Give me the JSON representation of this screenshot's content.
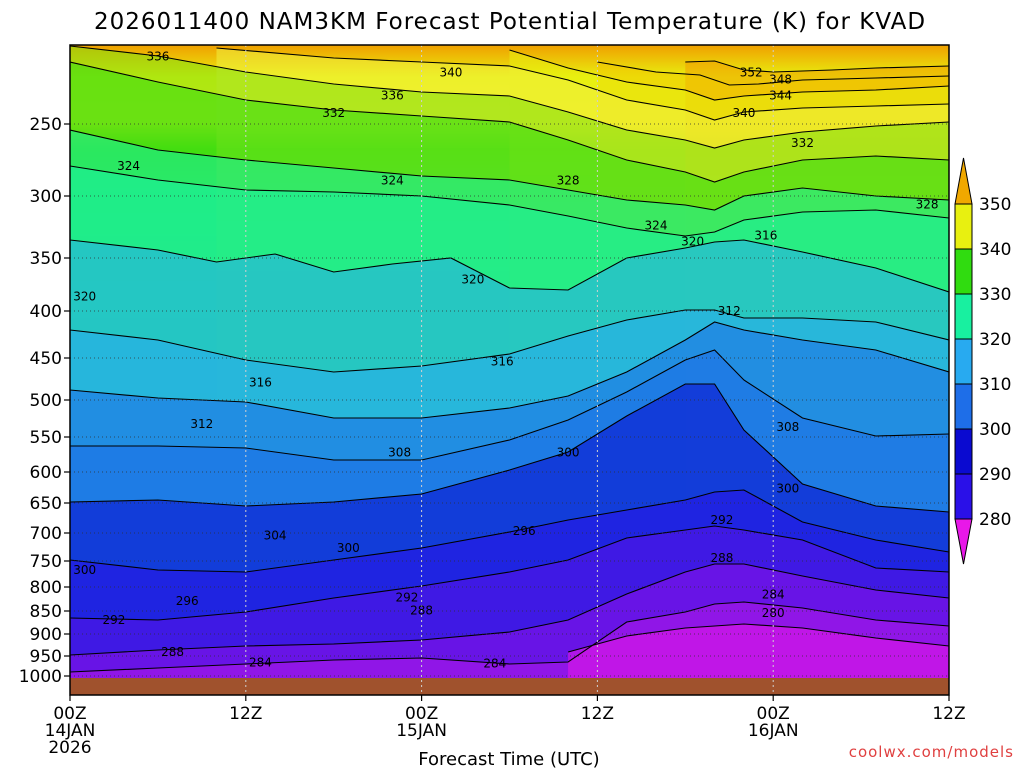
{
  "chart_data": {
    "type": "heatmap",
    "title": "2026011400 NAM3KM Forecast Potential Temperature (K) for KVAD",
    "xlabel": "Forecast Time (UTC)",
    "ylabel": "",
    "x_ticks": [
      {
        "hour": 0,
        "line1": "00Z",
        "line2": "14JAN",
        "line3": "2026"
      },
      {
        "hour": 12,
        "line1": "12Z",
        "line2": "",
        "line3": ""
      },
      {
        "hour": 24,
        "line1": "00Z",
        "line2": "15JAN",
        "line3": ""
      },
      {
        "hour": 36,
        "line1": "12Z",
        "line2": "",
        "line3": ""
      },
      {
        "hour": 48,
        "line1": "00Z",
        "line2": "16JAN",
        "line3": ""
      },
      {
        "hour": 60,
        "line1": "12Z",
        "line2": "",
        "line3": ""
      }
    ],
    "xlim": [
      0,
      60
    ],
    "y_ticks": [
      250,
      300,
      350,
      400,
      450,
      500,
      550,
      600,
      650,
      700,
      750,
      800,
      850,
      900,
      950,
      1000
    ],
    "ylim_hpa": [
      200,
      1015
    ],
    "colorbar": {
      "ticks": [
        280,
        290,
        300,
        310,
        320,
        330,
        340,
        350
      ],
      "colors": [
        "#e818e8",
        "#8a10e8",
        "#2a10e8",
        "#0a0ad0",
        "#1e6ee8",
        "#28aaf0",
        "#18f0a0",
        "#30dc10",
        "#e8f010",
        "#f0a800"
      ]
    },
    "isentropes": [
      {
        "label": "352",
        "points": [
          [
            42,
            62
          ],
          [
            44,
            61
          ],
          [
            46,
            70
          ],
          [
            48,
            72
          ],
          [
            52,
            70
          ],
          [
            55,
            68
          ],
          [
            60,
            66
          ]
        ]
      },
      {
        "label": "348",
        "points": [
          [
            36,
            62
          ],
          [
            40,
            72
          ],
          [
            43,
            75
          ],
          [
            45,
            85
          ],
          [
            47,
            84
          ],
          [
            50,
            80
          ],
          [
            55,
            78
          ],
          [
            60,
            76
          ]
        ]
      },
      {
        "label": "344",
        "points": [
          [
            30,
            50
          ],
          [
            34,
            68
          ],
          [
            38,
            82
          ],
          [
            42,
            90
          ],
          [
            44,
            100
          ],
          [
            46,
            96
          ],
          [
            50,
            92
          ],
          [
            55,
            90
          ],
          [
            60,
            86
          ]
        ]
      },
      {
        "label": "340",
        "points": [
          [
            10,
            48
          ],
          [
            18,
            58
          ],
          [
            24,
            62
          ],
          [
            30,
            66
          ],
          [
            34,
            80
          ],
          [
            38,
            100
          ],
          [
            42,
            110
          ],
          [
            44,
            120
          ],
          [
            46,
            112
          ],
          [
            50,
            108
          ],
          [
            55,
            106
          ],
          [
            60,
            104
          ]
        ]
      },
      {
        "label": "336",
        "points": [
          [
            0,
            46
          ],
          [
            6,
            56
          ],
          [
            12,
            72
          ],
          [
            18,
            84
          ],
          [
            24,
            92
          ],
          [
            30,
            96
          ],
          [
            34,
            112
          ],
          [
            38,
            130
          ],
          [
            42,
            140
          ],
          [
            44,
            148
          ],
          [
            46,
            140
          ],
          [
            50,
            132
          ],
          [
            55,
            126
          ],
          [
            60,
            122
          ]
        ]
      },
      {
        "label": "332",
        "points": [
          [
            0,
            62
          ],
          [
            6,
            82
          ],
          [
            12,
            100
          ],
          [
            18,
            110
          ],
          [
            24,
            116
          ],
          [
            30,
            122
          ],
          [
            34,
            140
          ],
          [
            38,
            160
          ],
          [
            42,
            172
          ],
          [
            44,
            182
          ],
          [
            46,
            172
          ],
          [
            50,
            160
          ],
          [
            55,
            156
          ],
          [
            60,
            160
          ]
        ]
      },
      {
        "label": "328",
        "points": [
          [
            0,
            130
          ],
          [
            6,
            150
          ],
          [
            12,
            160
          ],
          [
            18,
            168
          ],
          [
            24,
            176
          ],
          [
            30,
            180
          ],
          [
            34,
            190
          ],
          [
            38,
            200
          ],
          [
            42,
            205
          ],
          [
            44,
            210
          ],
          [
            46,
            196
          ],
          [
            50,
            188
          ],
          [
            55,
            196
          ],
          [
            60,
            200
          ]
        ]
      },
      {
        "label": "324",
        "points": [
          [
            0,
            166
          ],
          [
            6,
            180
          ],
          [
            12,
            190
          ],
          [
            18,
            192
          ],
          [
            24,
            196
          ],
          [
            30,
            205
          ],
          [
            34,
            216
          ],
          [
            38,
            228
          ],
          [
            42,
            236
          ],
          [
            44,
            232
          ],
          [
            46,
            220
          ],
          [
            50,
            212
          ],
          [
            55,
            210
          ],
          [
            60,
            218
          ]
        ]
      },
      {
        "label": "320",
        "points": [
          [
            0,
            240
          ],
          [
            6,
            250
          ],
          [
            10,
            262
          ],
          [
            14,
            254
          ],
          [
            18,
            272
          ],
          [
            22,
            264
          ],
          [
            26,
            258
          ],
          [
            30,
            288
          ],
          [
            34,
            290
          ],
          [
            38,
            258
          ],
          [
            42,
            248
          ],
          [
            44,
            242
          ],
          [
            46,
            240
          ],
          [
            50,
            252
          ],
          [
            55,
            268
          ],
          [
            60,
            292
          ]
        ]
      },
      {
        "label": "316",
        "points": [
          [
            0,
            330
          ],
          [
            6,
            340
          ],
          [
            12,
            360
          ],
          [
            18,
            372
          ],
          [
            24,
            366
          ],
          [
            30,
            354
          ],
          [
            34,
            336
          ],
          [
            38,
            320
          ],
          [
            42,
            310
          ],
          [
            44,
            310
          ],
          [
            46,
            318
          ],
          [
            50,
            318
          ],
          [
            55,
            322
          ],
          [
            60,
            340
          ]
        ]
      },
      {
        "label": "312",
        "points": [
          [
            0,
            390
          ],
          [
            6,
            398
          ],
          [
            12,
            402
          ],
          [
            18,
            418
          ],
          [
            24,
            418
          ],
          [
            30,
            408
          ],
          [
            34,
            396
          ],
          [
            38,
            372
          ],
          [
            42,
            340
          ],
          [
            44,
            322
          ],
          [
            46,
            330
          ],
          [
            50,
            340
          ],
          [
            55,
            350
          ],
          [
            60,
            372
          ]
        ]
      },
      {
        "label": "308",
        "points": [
          [
            0,
            446
          ],
          [
            6,
            446
          ],
          [
            12,
            448
          ],
          [
            18,
            460
          ],
          [
            24,
            460
          ],
          [
            30,
            440
          ],
          [
            34,
            420
          ],
          [
            38,
            392
          ],
          [
            42,
            360
          ],
          [
            44,
            350
          ],
          [
            46,
            380
          ],
          [
            50,
            418
          ],
          [
            55,
            436
          ],
          [
            60,
            434
          ]
        ]
      },
      {
        "label": "300",
        "points": [
          [
            0,
            502
          ],
          [
            6,
            500
          ],
          [
            12,
            506
          ],
          [
            18,
            502
          ],
          [
            24,
            494
          ],
          [
            30,
            470
          ],
          [
            34,
            452
          ],
          [
            38,
            416
          ],
          [
            42,
            384
          ],
          [
            44,
            384
          ],
          [
            46,
            430
          ],
          [
            50,
            484
          ],
          [
            55,
            506
          ],
          [
            60,
            512
          ]
        ]
      },
      {
        "label": "296",
        "points": [
          [
            0,
            560
          ],
          [
            6,
            570
          ],
          [
            12,
            572
          ],
          [
            18,
            560
          ],
          [
            24,
            548
          ],
          [
            30,
            532
          ],
          [
            34,
            520
          ],
          [
            38,
            510
          ],
          [
            42,
            500
          ],
          [
            44,
            492
          ],
          [
            46,
            490
          ],
          [
            50,
            522
          ],
          [
            55,
            540
          ],
          [
            60,
            552
          ]
        ]
      },
      {
        "label": "292",
        "points": [
          [
            0,
            618
          ],
          [
            6,
            620
          ],
          [
            12,
            612
          ],
          [
            18,
            598
          ],
          [
            24,
            586
          ],
          [
            30,
            572
          ],
          [
            34,
            560
          ],
          [
            38,
            538
          ],
          [
            42,
            530
          ],
          [
            44,
            526
          ],
          [
            46,
            530
          ],
          [
            50,
            540
          ],
          [
            55,
            568
          ],
          [
            60,
            572
          ]
        ]
      },
      {
        "label": "288",
        "points": [
          [
            0,
            655
          ],
          [
            6,
            650
          ],
          [
            12,
            646
          ],
          [
            18,
            644
          ],
          [
            24,
            640
          ],
          [
            30,
            632
          ],
          [
            34,
            620
          ],
          [
            38,
            594
          ],
          [
            42,
            572
          ],
          [
            44,
            564
          ],
          [
            46,
            564
          ],
          [
            50,
            576
          ],
          [
            55,
            590
          ],
          [
            60,
            598
          ]
        ]
      },
      {
        "label": "284",
        "points": [
          [
            0,
            672
          ],
          [
            6,
            668
          ],
          [
            12,
            664
          ],
          [
            18,
            660
          ],
          [
            24,
            658
          ],
          [
            30,
            664
          ],
          [
            34,
            662
          ],
          [
            38,
            622
          ],
          [
            42,
            612
          ],
          [
            44,
            604
          ],
          [
            46,
            602
          ],
          [
            50,
            608
          ],
          [
            55,
            620
          ],
          [
            60,
            626
          ]
        ]
      },
      {
        "label": "280",
        "points": [
          [
            34,
            652
          ],
          [
            38,
            636
          ],
          [
            42,
            628
          ],
          [
            46,
            624
          ],
          [
            50,
            628
          ],
          [
            55,
            638
          ],
          [
            60,
            646
          ]
        ]
      }
    ],
    "contour_labels": [
      {
        "text": "336",
        "hour": 6.0,
        "hpa": 206
      },
      {
        "text": "340",
        "hour": 26.0,
        "hpa": 217
      },
      {
        "text": "352",
        "hour": 46.5,
        "hpa": 217
      },
      {
        "text": "348",
        "hour": 48.5,
        "hpa": 222
      },
      {
        "text": "344",
        "hour": 48.5,
        "hpa": 233
      },
      {
        "text": "336",
        "hour": 22.0,
        "hpa": 233
      },
      {
        "text": "332",
        "hour": 18.0,
        "hpa": 245
      },
      {
        "text": "340",
        "hour": 46.0,
        "hpa": 245
      },
      {
        "text": "332",
        "hour": 50.0,
        "hpa": 266
      },
      {
        "text": "324",
        "hour": 4.0,
        "hpa": 282
      },
      {
        "text": "324",
        "hour": 22.0,
        "hpa": 292
      },
      {
        "text": "328",
        "hour": 34.0,
        "hpa": 292
      },
      {
        "text": "328",
        "hour": 58.5,
        "hpa": 310
      },
      {
        "text": "324",
        "hour": 40.0,
        "hpa": 327
      },
      {
        "text": "320",
        "hour": 42.5,
        "hpa": 340
      },
      {
        "text": "316",
        "hour": 47.5,
        "hpa": 335
      },
      {
        "text": "320",
        "hour": 27.5,
        "hpa": 374
      },
      {
        "text": "320",
        "hour": 1.0,
        "hpa": 390
      },
      {
        "text": "312",
        "hour": 45.0,
        "hpa": 404
      },
      {
        "text": "316",
        "hour": 29.5,
        "hpa": 459
      },
      {
        "text": "316",
        "hour": 13.0,
        "hpa": 484
      },
      {
        "text": "312",
        "hour": 9.0,
        "hpa": 538
      },
      {
        "text": "308",
        "hour": 49.0,
        "hpa": 542
      },
      {
        "text": "308",
        "hour": 22.5,
        "hpa": 578
      },
      {
        "text": "300",
        "hour": 34.0,
        "hpa": 578
      },
      {
        "text": "300",
        "hour": 49.0,
        "hpa": 633
      },
      {
        "text": "292",
        "hour": 44.5,
        "hpa": 685
      },
      {
        "text": "296",
        "hour": 31.0,
        "hpa": 704
      },
      {
        "text": "304",
        "hour": 14.0,
        "hpa": 712
      },
      {
        "text": "300",
        "hour": 19.0,
        "hpa": 734
      },
      {
        "text": "288",
        "hour": 44.5,
        "hpa": 752
      },
      {
        "text": "300",
        "hour": 1.0,
        "hpa": 775
      },
      {
        "text": "284",
        "hour": 48.0,
        "hpa": 824
      },
      {
        "text": "296",
        "hour": 8.0,
        "hpa": 838
      },
      {
        "text": "292",
        "hour": 23.0,
        "hpa": 830
      },
      {
        "text": "288",
        "hour": 24.0,
        "hpa": 858
      },
      {
        "text": "280",
        "hour": 48.0,
        "hpa": 863
      },
      {
        "text": "292",
        "hour": 3.0,
        "hpa": 878
      },
      {
        "text": "288",
        "hour": 7.0,
        "hpa": 950
      },
      {
        "text": "284",
        "hour": 13.0,
        "hpa": 976
      },
      {
        "text": "284",
        "hour": 29.0,
        "hpa": 979
      }
    ]
  },
  "credit": "coolwx.com/models"
}
